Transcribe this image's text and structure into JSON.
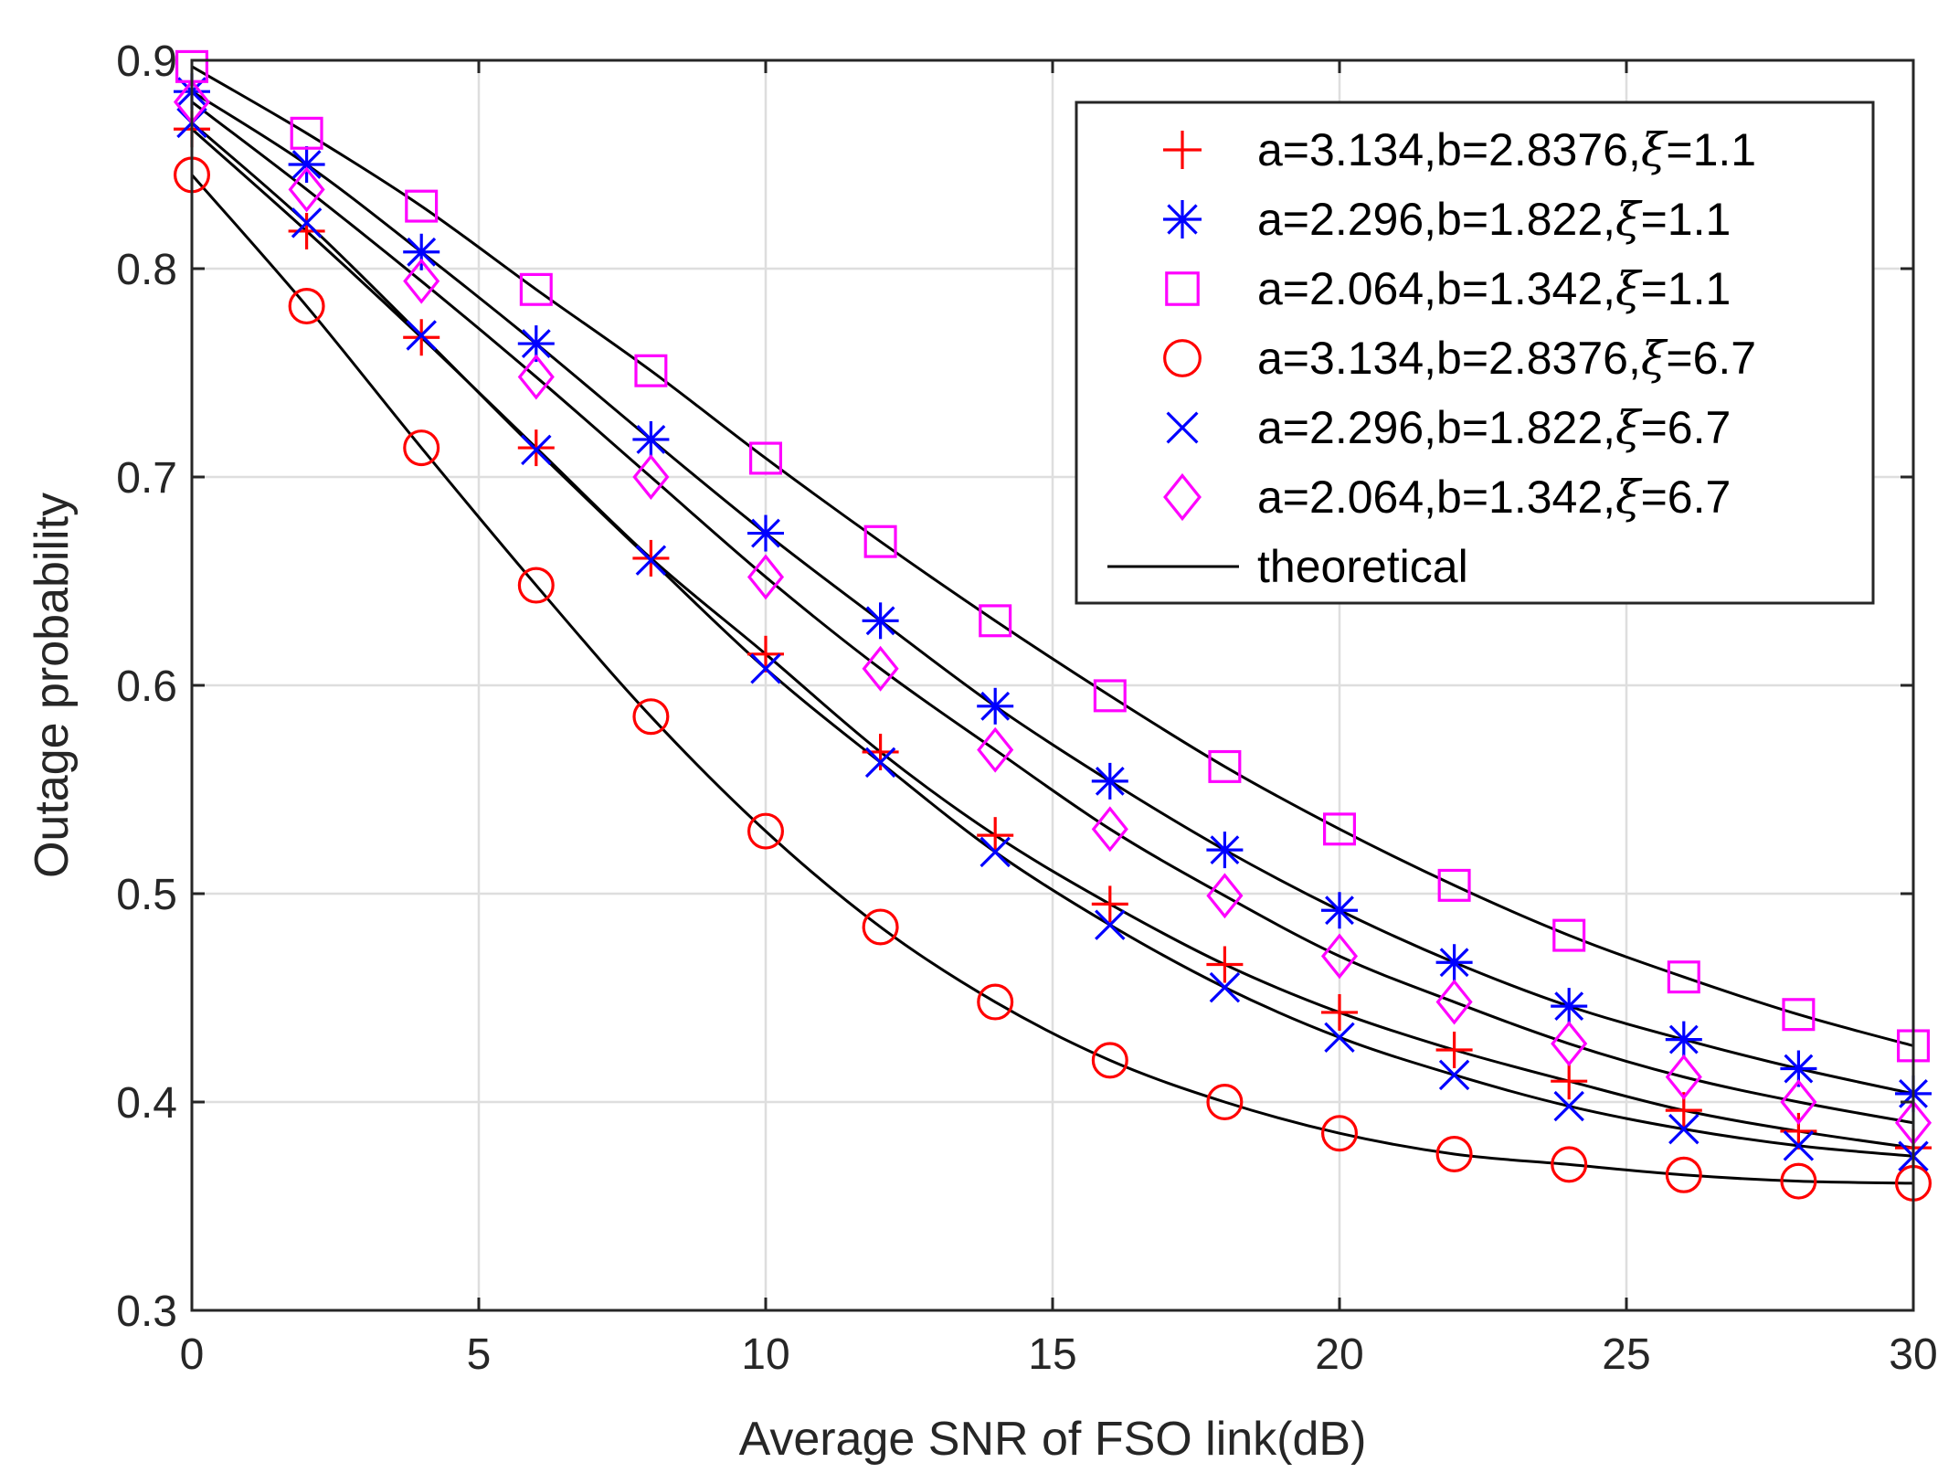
{
  "chart_data": {
    "type": "line",
    "title": "",
    "xlabel": "Average SNR of FSO link(dB)",
    "ylabel": "Outage probability",
    "xlim": [
      0,
      30
    ],
    "ylim": [
      0.3,
      0.9
    ],
    "xticks": [
      0,
      5,
      10,
      15,
      20,
      25,
      30
    ],
    "xtick_labels": [
      "0",
      "5",
      "10",
      "15",
      "20",
      "25",
      "30"
    ],
    "yticks": [
      0.3,
      0.4,
      0.5,
      0.6,
      0.7,
      0.8,
      0.9
    ],
    "ytick_labels": [
      "0.3",
      "0.4",
      "0.5",
      "0.6",
      "0.7",
      "0.8",
      "0.9"
    ],
    "grid": true,
    "legend_position": "top-right",
    "x": [
      0,
      2,
      4,
      6,
      8,
      10,
      12,
      14,
      16,
      18,
      20,
      22,
      24,
      26,
      28,
      30
    ],
    "series": [
      {
        "name": "a=3.134,b=2.8376,ξ=1.1",
        "label_prefix": "a=3.134,b=2.8376,",
        "label_suffix": "=1.1",
        "marker": "plus",
        "color": "#ff0000",
        "values": [
          0.867,
          0.818,
          0.767,
          0.714,
          0.661,
          0.615,
          0.568,
          0.528,
          0.495,
          0.466,
          0.443,
          0.425,
          0.41,
          0.396,
          0.386,
          0.378
        ]
      },
      {
        "name": "a=2.296,b=1.822,ξ=1.1",
        "label_prefix": "a=2.296,b=1.822,",
        "label_suffix": "=1.1",
        "marker": "asterisk",
        "color": "#0000ff",
        "values": [
          0.885,
          0.85,
          0.808,
          0.764,
          0.718,
          0.673,
          0.631,
          0.59,
          0.554,
          0.521,
          0.492,
          0.467,
          0.446,
          0.43,
          0.416,
          0.404
        ]
      },
      {
        "name": "a=2.064,b=1.342,ξ=1.1",
        "label_prefix": "a=2.064,b=1.342,",
        "label_suffix": "=1.1",
        "marker": "square",
        "color": "#ff00ff",
        "values": [
          0.897,
          0.865,
          0.83,
          0.79,
          0.751,
          0.709,
          0.669,
          0.631,
          0.595,
          0.561,
          0.531,
          0.504,
          0.48,
          0.46,
          0.442,
          0.427
        ]
      },
      {
        "name": "a=3.134,b=2.8376,ξ=6.7",
        "label_prefix": "a=3.134,b=2.8376,",
        "label_suffix": "=6.7",
        "marker": "circle",
        "color": "#ff0000",
        "values": [
          0.845,
          0.782,
          0.714,
          0.648,
          0.585,
          0.53,
          0.484,
          0.448,
          0.42,
          0.4,
          0.385,
          0.375,
          0.37,
          0.365,
          0.362,
          0.361
        ]
      },
      {
        "name": "a=2.296,b=1.822,ξ=6.7",
        "label_prefix": "a=2.296,b=1.822,",
        "label_suffix": "=6.7",
        "marker": "x",
        "color": "#0000ff",
        "values": [
          0.87,
          0.822,
          0.768,
          0.713,
          0.66,
          0.608,
          0.563,
          0.52,
          0.485,
          0.455,
          0.431,
          0.413,
          0.398,
          0.387,
          0.379,
          0.374
        ]
      },
      {
        "name": "a=2.064,b=1.342,ξ=6.7",
        "label_prefix": "a=2.064,b=1.342,",
        "label_suffix": "=6.7",
        "marker": "diamond",
        "color": "#ff00ff",
        "values": [
          0.88,
          0.838,
          0.794,
          0.748,
          0.7,
          0.652,
          0.608,
          0.569,
          0.531,
          0.499,
          0.47,
          0.448,
          0.428,
          0.412,
          0.4,
          0.39
        ]
      }
    ],
    "theoretical": {
      "name": "theoretical",
      "color": "#000000"
    },
    "legend_symbol": "ξ"
  }
}
